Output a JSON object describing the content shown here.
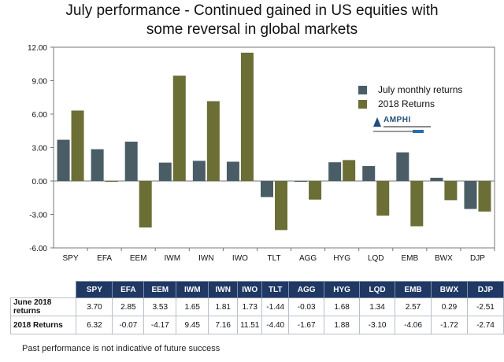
{
  "title_line1": "July performance - Continued gained in US equities with",
  "title_line2": "some reversal in global markets",
  "colors": {
    "july": "#4a5d66",
    "ytd": "#6b6e35"
  },
  "logo": {
    "icon": "amphi-logo",
    "name": "AMPHI"
  },
  "chart_data": {
    "type": "bar",
    "categories": [
      "SPY",
      "EFA",
      "EEM",
      "IWM",
      "IWN",
      "IWO",
      "TLT",
      "AGG",
      "HYG",
      "LQD",
      "EMB",
      "BWX",
      "DJP"
    ],
    "series": [
      {
        "name": "July monthly returns",
        "values": [
          3.7,
          2.85,
          3.53,
          1.65,
          1.81,
          1.73,
          -1.44,
          -0.03,
          1.68,
          1.34,
          2.57,
          0.29,
          -2.51
        ]
      },
      {
        "name": "2018 Returns",
        "values": [
          6.32,
          -0.07,
          -4.17,
          9.45,
          7.16,
          11.51,
          -4.4,
          -1.67,
          1.88,
          -3.1,
          -4.06,
          -1.72,
          -2.74
        ]
      }
    ],
    "ylim": [
      -6,
      12
    ],
    "yticks": [
      "12.00",
      "9.00",
      "6.00",
      "3.00",
      "0.00",
      "-3.00",
      "-6.00"
    ],
    "grid": false,
    "legend_position": "right"
  },
  "table": {
    "headers": [
      "SPY",
      "EFA",
      "EEM",
      "IWM",
      "IWN",
      "IWO",
      "TLT",
      "AGG",
      "HYG",
      "LQD",
      "EMB",
      "BWX",
      "DJP"
    ],
    "rows": [
      {
        "label_line1": "June 2018",
        "label_line2": "returns",
        "values": [
          "3.70",
          "2.85",
          "3.53",
          "1.65",
          "1.81",
          "1.73",
          "-1.44",
          "-0.03",
          "1.68",
          "1.34",
          "2.57",
          "0.29",
          "-2.51"
        ]
      },
      {
        "label_line1": "2018 Returns",
        "label_line2": "",
        "values": [
          "6.32",
          "-0.07",
          "-4.17",
          "9.45",
          "7.16",
          "11.51",
          "-4.40",
          "-1.67",
          "1.88",
          "-3.10",
          "-4.06",
          "-1.72",
          "-2.74"
        ]
      }
    ]
  },
  "footnote": "Past performance is not indicative of future success"
}
